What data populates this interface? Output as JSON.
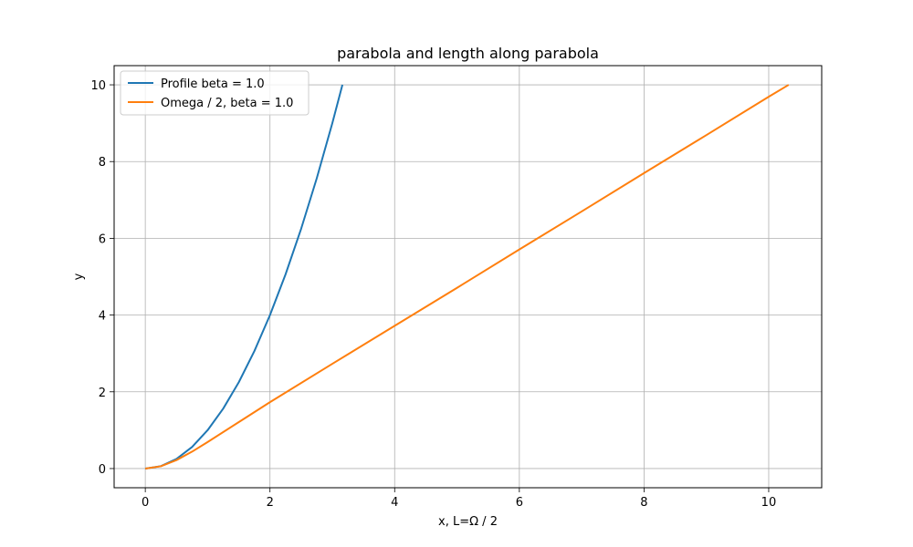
{
  "chart_data": {
    "type": "line",
    "title": "parabola and length along parabola",
    "xlabel": "x, L=Ω / 2",
    "ylabel": "y",
    "xlim": [
      -0.5,
      10.85
    ],
    "ylim": [
      -0.5,
      10.5
    ],
    "xticks": [
      0,
      2,
      4,
      6,
      8,
      10
    ],
    "yticks": [
      0,
      2,
      4,
      6,
      8,
      10
    ],
    "grid": true,
    "legend_position": "top-left",
    "series": [
      {
        "name": "Profile beta = 1.0",
        "color": "#1f77b4",
        "kind": "parabola",
        "x": [
          0,
          0.25,
          0.5,
          0.75,
          1.0,
          1.25,
          1.5,
          1.75,
          2.0,
          2.25,
          2.5,
          2.75,
          3.0,
          3.162
        ],
        "y": [
          0,
          0.0625,
          0.25,
          0.5625,
          1.0,
          1.5625,
          2.25,
          3.0625,
          4.0,
          5.0625,
          6.25,
          7.5625,
          9.0,
          10.0
        ]
      },
      {
        "name": "Omega / 2, beta = 1.0",
        "color": "#ff7f0e",
        "kind": "arc-length",
        "x": [
          0,
          0.25,
          0.5,
          0.75,
          1.0,
          1.5,
          2.0,
          3.0,
          4.0,
          5.0,
          6.0,
          7.0,
          8.0,
          9.0,
          10.0,
          10.32
        ],
        "y": [
          0,
          0.06,
          0.22,
          0.44,
          0.69,
          1.21,
          1.73,
          2.73,
          3.72,
          4.71,
          5.71,
          6.7,
          7.7,
          8.69,
          9.69,
          10.0
        ]
      }
    ]
  }
}
